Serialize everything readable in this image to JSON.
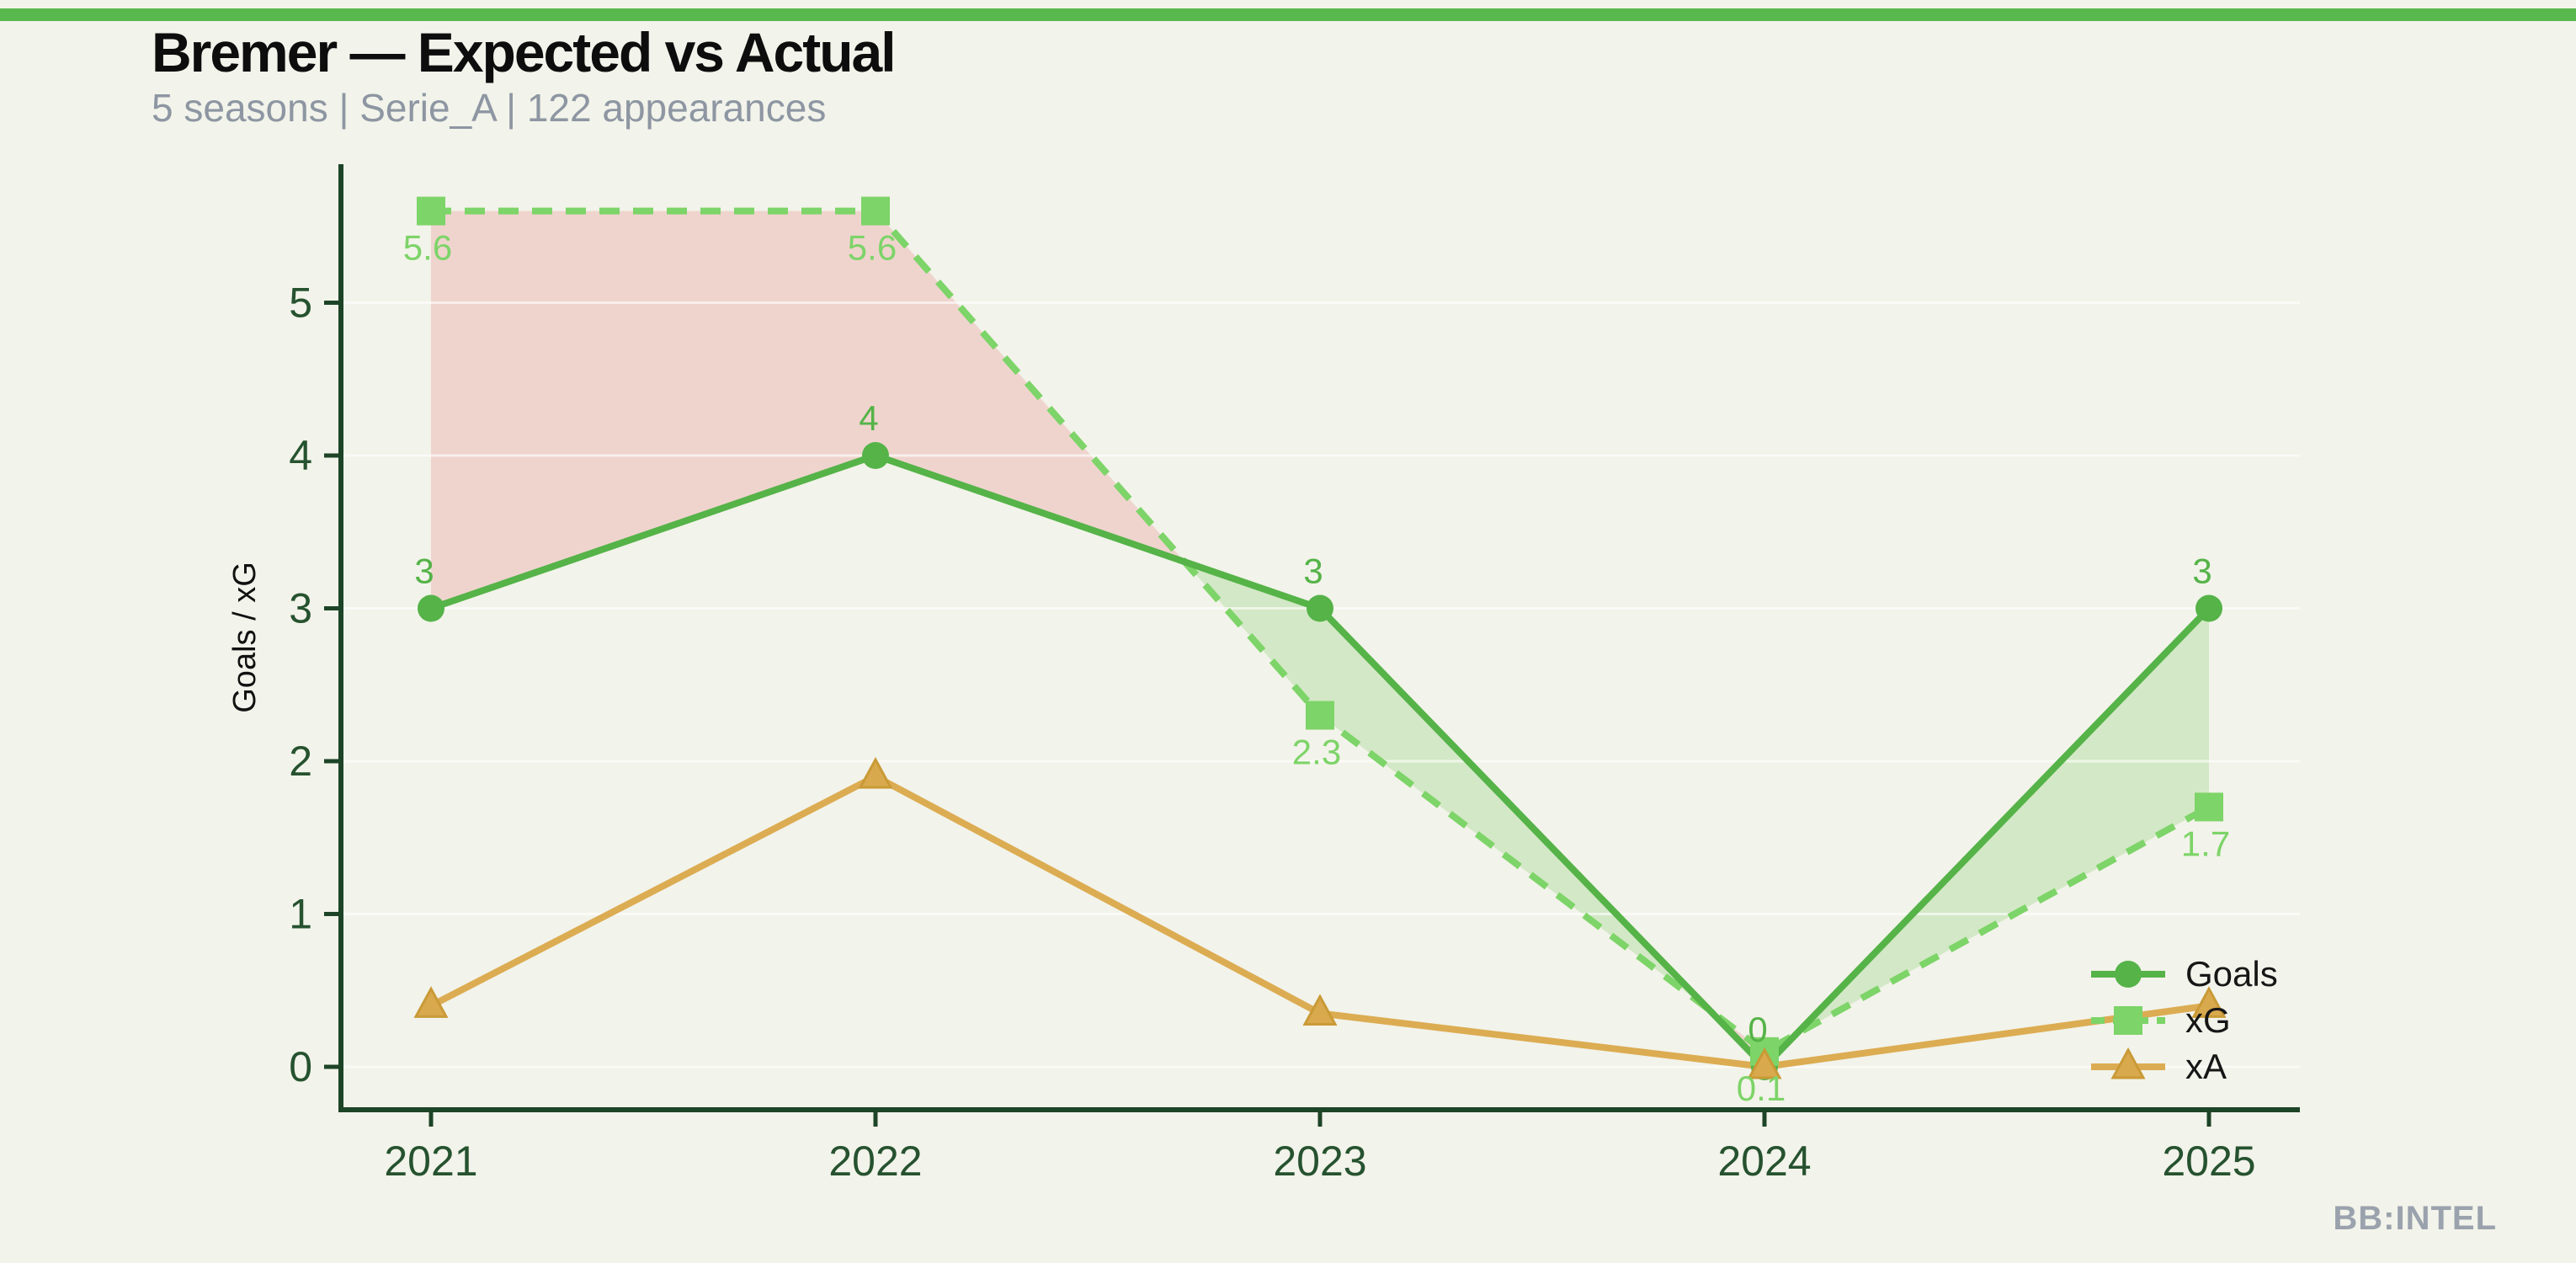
{
  "page": {
    "background": "#f2f3ea",
    "accent_bar_color": "#58b84d"
  },
  "header": {
    "title": "Bremer — Expected vs Actual",
    "subtitle": "5 seasons | Serie_A | 122 appearances"
  },
  "footer": {
    "brand": "BB:INTEL"
  },
  "chart_data": {
    "type": "line",
    "title": "Bremer — Expected vs Actual",
    "categories": [
      "2021",
      "2022",
      "2023",
      "2024",
      "2025"
    ],
    "xlabel": "",
    "ylabel": "Goals / xG",
    "ylim": [
      -0.3,
      5.9
    ],
    "yticks": [
      0,
      1,
      2,
      3,
      4,
      5
    ],
    "grid": "faint horizontal gridlines at integer values",
    "legend_position": "lower right",
    "axis_color": "#1d4427",
    "tick_label_color": "#26522f",
    "gridline_color": "rgba(255,255,255,0.6)",
    "series": [
      {
        "name": "Goals",
        "marker": "circle",
        "line_style": "solid",
        "color": "#55b348",
        "values": [
          3,
          4,
          3,
          0,
          3
        ],
        "point_labels": [
          "3",
          "4",
          "3",
          "0",
          "3"
        ],
        "label_position": "above"
      },
      {
        "name": "xG",
        "marker": "square",
        "line_style": "dashed",
        "color": "#7dd468",
        "values": [
          5.6,
          5.6,
          2.3,
          0.1,
          1.7
        ],
        "point_labels": [
          "5.6",
          "5.6",
          "2.3",
          "0.1",
          "1.7"
        ],
        "label_position": "below"
      },
      {
        "name": "xA",
        "marker": "triangle",
        "line_style": "solid",
        "color": "#dcac52",
        "marker_fill": "#d9a94e",
        "marker_edge": "#c99a36",
        "values": [
          0.4,
          1.9,
          0.35,
          0.0,
          0.4
        ],
        "point_labels": [],
        "label_position": "none"
      }
    ],
    "fill_between": {
      "a": "Goals",
      "b": "xG",
      "a_above_color": "rgba(138,208,116,0.30)",
      "b_above_color": "rgba(235,150,150,0.33)"
    }
  }
}
